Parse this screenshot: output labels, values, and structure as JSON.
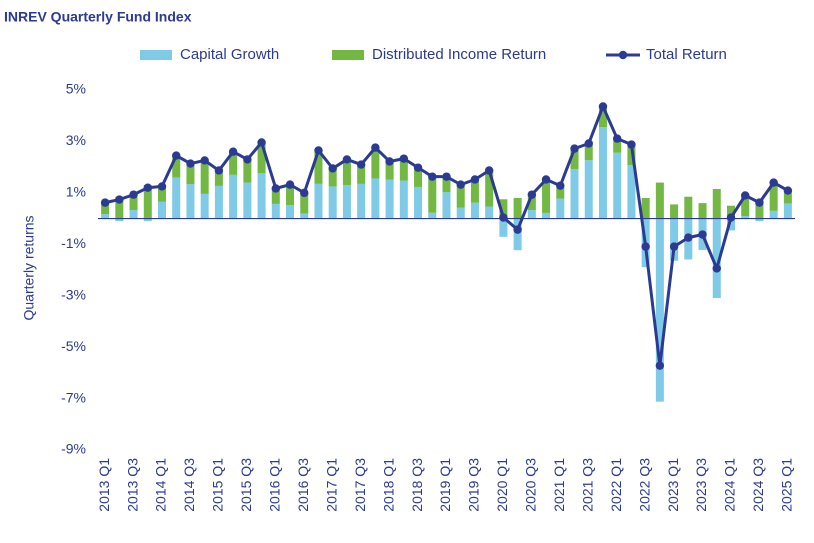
{
  "chart_data": {
    "type": "bar",
    "stacked": true,
    "title": "INREV Quarterly Fund Index",
    "y_label": "Quarterly returns",
    "categories": [
      "2013 Q1",
      null,
      "2013 Q3",
      null,
      "2014 Q1",
      null,
      "2014 Q3",
      null,
      "2015 Q1",
      null,
      "2015 Q3",
      null,
      "2016 Q1",
      null,
      "2016 Q3",
      null,
      "2017 Q1",
      null,
      "2017 Q3",
      null,
      "2018 Q1",
      null,
      "2018 Q3",
      null,
      "2019 Q1",
      null,
      "2019 Q3",
      null,
      "2020 Q1",
      null,
      "2020 Q3",
      null,
      "2021 Q1",
      null,
      "2021 Q3",
      null,
      "2022 Q1",
      null,
      "2022 Q3",
      null,
      "2023 Q1",
      null,
      "2023 Q3",
      null,
      "2024 Q1",
      null,
      "2024 Q3",
      null,
      "2025 Q1"
    ],
    "series": [
      {
        "name": "Capital Growth",
        "color": "#7fcae6",
        "values": [
          0.17,
          -0.1,
          0.33,
          -0.1,
          0.65,
          1.6,
          1.34,
          0.96,
          1.27,
          1.7,
          1.4,
          1.76,
          0.57,
          0.52,
          0.2,
          1.35,
          1.25,
          1.3,
          1.35,
          1.56,
          1.52,
          1.48,
          1.23,
          0.23,
          1.03,
          0.42,
          0.62,
          0.47,
          -0.71,
          -1.23,
          0.33,
          0.22,
          0.78,
          1.92,
          2.27,
          3.56,
          2.56,
          2.08,
          -1.89,
          -7.12,
          -1.64,
          -1.59,
          -1.22,
          -3.09,
          -0.46,
          0.1,
          -0.1,
          0.3,
          0.59
        ]
      },
      {
        "name": "Distributed Income Return",
        "color": "#72b843",
        "values": [
          0.45,
          0.84,
          0.6,
          1.3,
          0.6,
          0.85,
          0.8,
          1.3,
          0.6,
          0.9,
          0.9,
          1.2,
          0.6,
          0.8,
          0.8,
          1.3,
          0.7,
          1.0,
          0.75,
          1.2,
          0.7,
          0.85,
          0.75,
          1.4,
          0.6,
          0.9,
          0.9,
          1.4,
          0.75,
          0.8,
          0.6,
          1.3,
          0.5,
          0.8,
          0.65,
          0.8,
          0.55,
          0.8,
          0.8,
          1.4,
          0.55,
          0.85,
          0.6,
          1.15,
          0.5,
          0.8,
          0.72,
          1.1,
          0.5
        ]
      },
      {
        "name": "Total Return",
        "color": "#2b3a92",
        "type": "line",
        "values": [
          0.62,
          0.74,
          0.93,
          1.2,
          1.25,
          2.45,
          2.14,
          2.26,
          1.87,
          2.6,
          2.3,
          2.96,
          1.17,
          1.32,
          1.0,
          2.65,
          1.95,
          2.3,
          2.1,
          2.76,
          2.22,
          2.33,
          1.98,
          1.63,
          1.63,
          1.32,
          1.52,
          1.87,
          0.04,
          -0.43,
          0.93,
          1.52,
          1.28,
          2.72,
          2.92,
          4.36,
          3.11,
          2.88,
          -1.09,
          -5.72,
          -1.09,
          -0.74,
          -0.62,
          -1.94,
          0.04,
          0.9,
          0.62,
          1.4,
          1.09
        ]
      }
    ],
    "ylim": [
      -9,
      5
    ],
    "yticks": [
      {
        "value": -9,
        "label": "-9%"
      },
      {
        "value": -7,
        "label": "-7%"
      },
      {
        "value": -5,
        "label": "-5%"
      },
      {
        "value": -3,
        "label": "-3%"
      },
      {
        "value": -1,
        "label": "-1%"
      },
      {
        "value": 1,
        "label": "1%"
      },
      {
        "value": 3,
        "label": "3%"
      },
      {
        "value": 5,
        "label": "5%"
      }
    ],
    "legend": "top"
  }
}
